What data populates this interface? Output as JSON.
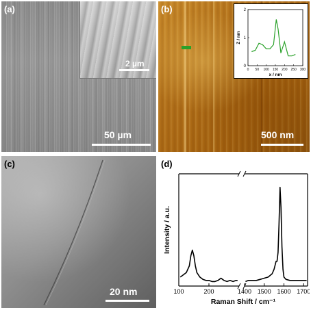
{
  "panels": {
    "a": {
      "label": "(a)",
      "scale": "50 µm",
      "inset_scale": "2 µm"
    },
    "b": {
      "label": "(b)",
      "scale": "500 nm"
    },
    "c": {
      "label": "(c)",
      "scale": "20 nm"
    },
    "d": {
      "label": "(d)"
    }
  },
  "chart_data": [
    {
      "type": "line",
      "panel": "b-inset",
      "xlabel": "x / nm",
      "ylabel": "Z / nm",
      "xlim": [
        0,
        300
      ],
      "ylim": [
        0,
        2
      ],
      "xticks": [
        0,
        50,
        100,
        150,
        200,
        250,
        300
      ],
      "yticks": [
        0,
        1,
        2
      ],
      "color": "#2aa12a",
      "x": [
        20,
        40,
        60,
        80,
        100,
        120,
        140,
        155,
        165,
        180,
        200,
        220,
        240,
        260
      ],
      "y": [
        0.5,
        0.55,
        0.8,
        0.75,
        0.6,
        0.6,
        0.75,
        1.65,
        1.3,
        0.45,
        0.85,
        0.35,
        0.35,
        0.4
      ]
    },
    {
      "type": "line",
      "panel": "d",
      "xlabel": "Raman Shift / cm⁻¹",
      "ylabel": "Intensity / a.u.",
      "xticks_left": [
        100,
        200
      ],
      "xticks_right": [
        1400,
        1500,
        1600,
        1700
      ],
      "xlim_left": [
        100,
        300
      ],
      "xlim_right": [
        1400,
        1720
      ],
      "ylim": [
        0,
        1
      ],
      "segments": [
        {
          "x": [
            105,
            115,
            125,
            135,
            140,
            145,
            150,
            155,
            160,
            170,
            180,
            190,
            200,
            210,
            220,
            230,
            240,
            250,
            260,
            270,
            280,
            290,
            295
          ],
          "y": [
            0.08,
            0.1,
            0.12,
            0.18,
            0.27,
            0.32,
            0.27,
            0.18,
            0.12,
            0.08,
            0.06,
            0.05,
            0.05,
            0.04,
            0.04,
            0.05,
            0.07,
            0.05,
            0.04,
            0.05,
            0.04,
            0.05,
            0.05
          ]
        },
        {
          "x": [
            1405,
            1420,
            1440,
            1460,
            1480,
            1500,
            1520,
            1540,
            1550,
            1560,
            1565,
            1570,
            1575,
            1580,
            1585,
            1590,
            1595,
            1600,
            1610,
            1630,
            1660,
            1690,
            1715
          ],
          "y": [
            0.04,
            0.05,
            0.05,
            0.05,
            0.06,
            0.07,
            0.08,
            0.11,
            0.15,
            0.22,
            0.22,
            0.3,
            0.55,
            0.88,
            0.7,
            0.35,
            0.15,
            0.08,
            0.06,
            0.05,
            0.05,
            0.05,
            0.05
          ]
        }
      ]
    }
  ]
}
